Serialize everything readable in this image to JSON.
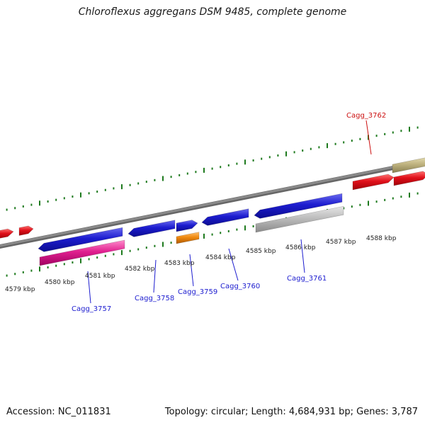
{
  "title": "Chloroflexus aggregans DSM 9485, complete genome",
  "footer": {
    "accession": "Accession: NC_011831",
    "summary": "Topology: circular; Length: 4,684,931 bp; Genes: 3,787"
  },
  "colors": {
    "tick": "#1e7a1e",
    "backbone": "#8a8a8a",
    "gene_blue": "#1c1ccf",
    "gene_red": "#e0101a",
    "gene_magenta": "#e0208f",
    "gene_orange": "#f08a10",
    "gene_grey": "#bdbdbd",
    "gene_khaki": "#bfb380",
    "label_blue": "#1c1ccf",
    "label_red": "#cc1111"
  },
  "scale_labels": [
    "4579 kbp",
    "4580 kbp",
    "4581 kbp",
    "4582 kbp",
    "4583 kbp",
    "4584 kbp",
    "4585 kbp",
    "4586 kbp",
    "4587 kbp",
    "4588 kbp"
  ],
  "gene_labels": [
    {
      "text": "Cagg_3757",
      "color": "blue"
    },
    {
      "text": "Cagg_3758",
      "color": "blue"
    },
    {
      "text": "Cagg_3759",
      "color": "blue"
    },
    {
      "text": "Cagg_3760",
      "color": "blue"
    },
    {
      "text": "Cagg_3761",
      "color": "blue"
    },
    {
      "text": "Cagg_3762",
      "color": "red"
    }
  ]
}
